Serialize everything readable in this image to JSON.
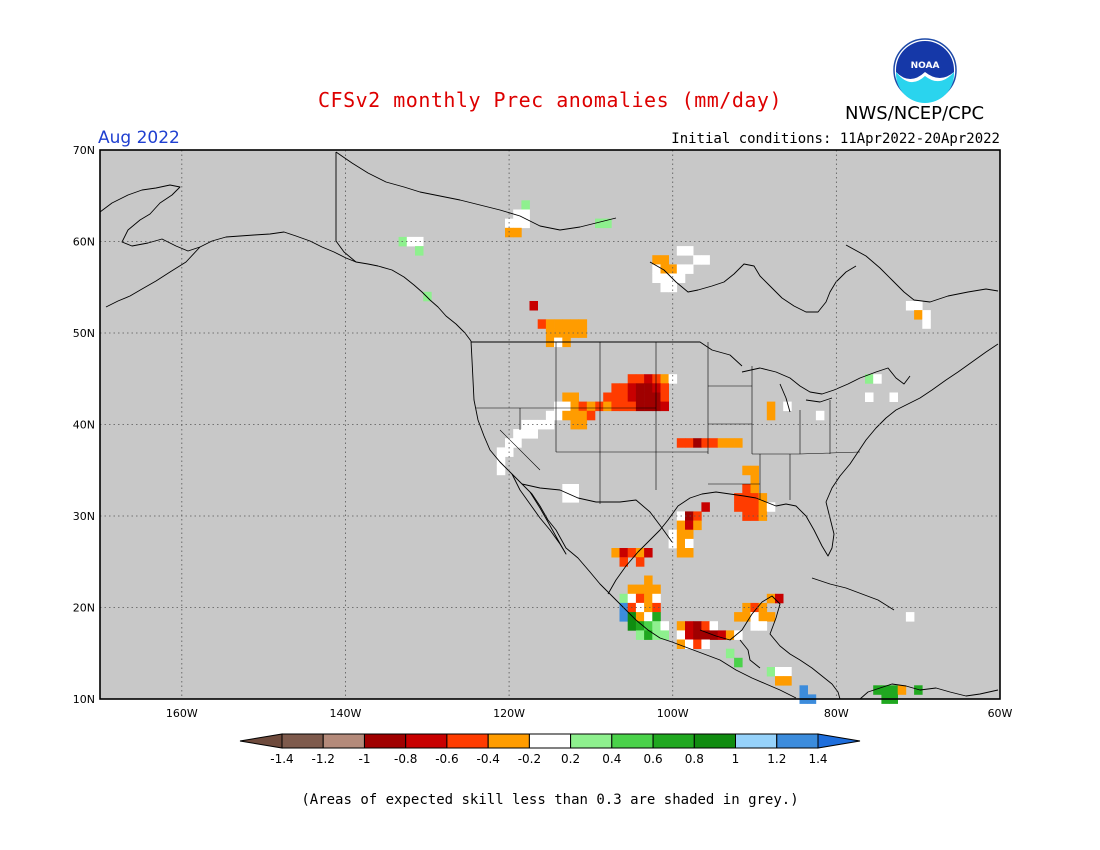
{
  "header": {
    "title": "CFSv2 monthly Prec anomalies (mm/day)",
    "agency": "NWS/NCEP/CPC",
    "logo_text": "NOAA",
    "period": "Aug 2022",
    "initial_conditions": "Initial conditions: 11Apr2022-20Apr2022"
  },
  "footnote": "(Areas of expected skill less than 0.3 are shaded in grey.)",
  "colors": {
    "land_grey": "#c8c8c8",
    "title_red": "#dd0000",
    "period_blue": "#1f3fd0"
  },
  "chart_data": {
    "type": "heatmap",
    "title": "CFSv2 monthly Prec anomalies (mm/day)",
    "projection": "lat-lon",
    "lon_range": [
      -170,
      -60
    ],
    "lat_range": [
      10,
      70
    ],
    "grid_lines": "dotted",
    "x_ticks": [
      "160W",
      "140W",
      "120W",
      "100W",
      "80W",
      "60W"
    ],
    "y_ticks": [
      "70N",
      "60N",
      "50N",
      "40N",
      "30N",
      "20N",
      "10N"
    ],
    "colorbar": {
      "labels": [
        "-1.4",
        "-1.2",
        "-1",
        "-0.8",
        "-0.6",
        "-0.4",
        "-0.2",
        "0.2",
        "0.4",
        "0.6",
        "0.8",
        "1",
        "1.2",
        "1.4"
      ],
      "colors": [
        "#6e4a3c",
        "#7e5a4c",
        "#b48a7a",
        "#a00000",
        "#c80000",
        "#ff3c00",
        "#ff9c00",
        "#ffffff",
        "#8ef08e",
        "#4ad24a",
        "#20a820",
        "#108c10",
        "#96d2fa",
        "#3c8cdc",
        "#1e6edc"
      ]
    },
    "cells": [
      {
        "lon": -118,
        "lat": 64,
        "v": 0.35
      },
      {
        "lon": -119,
        "lat": 63,
        "v": 0
      },
      {
        "lon": -118,
        "lat": 63,
        "v": 0
      },
      {
        "lon": -120,
        "lat": 62,
        "v": 0
      },
      {
        "lon": -119,
        "lat": 62,
        "v": 0
      },
      {
        "lon": -118,
        "lat": 62,
        "v": 0
      },
      {
        "lon": -120,
        "lat": 61,
        "v": -0.3
      },
      {
        "lon": -119,
        "lat": 61,
        "v": -0.3
      },
      {
        "lon": -109,
        "lat": 62,
        "v": 0.35
      },
      {
        "lon": -108,
        "lat": 62,
        "v": 0.35
      },
      {
        "lon": -133,
        "lat": 60,
        "v": 0.35
      },
      {
        "lon": -132,
        "lat": 60,
        "v": 0
      },
      {
        "lon": -131,
        "lat": 60,
        "v": 0
      },
      {
        "lon": -131,
        "lat": 59,
        "v": 0.35
      },
      {
        "lon": -130,
        "lat": 54,
        "v": 0.35
      },
      {
        "lon": -117,
        "lat": 53,
        "v": -0.7
      },
      {
        "lon": -102,
        "lat": 58,
        "v": -0.3
      },
      {
        "lon": -101,
        "lat": 58,
        "v": -0.3
      },
      {
        "lon": -99,
        "lat": 59,
        "v": 0
      },
      {
        "lon": -98,
        "lat": 59,
        "v": 0
      },
      {
        "lon": -97,
        "lat": 58,
        "v": 0
      },
      {
        "lon": -96,
        "lat": 58,
        "v": 0
      },
      {
        "lon": -102,
        "lat": 57,
        "v": 0
      },
      {
        "lon": -101,
        "lat": 57,
        "v": -0.3
      },
      {
        "lon": -100,
        "lat": 57,
        "v": -0.3
      },
      {
        "lon": -99,
        "lat": 57,
        "v": 0
      },
      {
        "lon": -98,
        "lat": 57,
        "v": 0
      },
      {
        "lon": -102,
        "lat": 56,
        "v": 0
      },
      {
        "lon": -101,
        "lat": 56,
        "v": 0
      },
      {
        "lon": -100,
        "lat": 56,
        "v": 0
      },
      {
        "lon": -99,
        "lat": 56,
        "v": 0
      },
      {
        "lon": -101,
        "lat": 55,
        "v": 0
      },
      {
        "lon": -100,
        "lat": 55,
        "v": 0
      },
      {
        "lon": -71,
        "lat": 53,
        "v": 0
      },
      {
        "lon": -70,
        "lat": 53,
        "v": 0
      },
      {
        "lon": -70,
        "lat": 52,
        "v": -0.3
      },
      {
        "lon": -69,
        "lat": 52,
        "v": 0
      },
      {
        "lon": -69,
        "lat": 51,
        "v": 0
      },
      {
        "lon": -116,
        "lat": 51,
        "v": -0.5
      },
      {
        "lon": -115,
        "lat": 51,
        "v": -0.3
      },
      {
        "lon": -114,
        "lat": 51,
        "v": -0.3
      },
      {
        "lon": -113,
        "lat": 51,
        "v": -0.3
      },
      {
        "lon": -112,
        "lat": 51,
        "v": -0.3
      },
      {
        "lon": -111,
        "lat": 51,
        "v": -0.3
      },
      {
        "lon": -115,
        "lat": 50,
        "v": -0.3
      },
      {
        "lon": -114,
        "lat": 50,
        "v": -0.3
      },
      {
        "lon": -113,
        "lat": 50,
        "v": -0.3
      },
      {
        "lon": -112,
        "lat": 50,
        "v": -0.3
      },
      {
        "lon": -111,
        "lat": 50,
        "v": -0.3
      },
      {
        "lon": -115,
        "lat": 49,
        "v": -0.3
      },
      {
        "lon": -114,
        "lat": 49,
        "v": 0
      },
      {
        "lon": -113,
        "lat": 49,
        "v": -0.3
      },
      {
        "lon": -105,
        "lat": 45,
        "v": -0.5
      },
      {
        "lon": -104,
        "lat": 45,
        "v": -0.5
      },
      {
        "lon": -103,
        "lat": 45,
        "v": -0.7
      },
      {
        "lon": -102,
        "lat": 45,
        "v": -0.5
      },
      {
        "lon": -101,
        "lat": 45,
        "v": -0.3
      },
      {
        "lon": -100,
        "lat": 45,
        "v": 0
      },
      {
        "lon": -107,
        "lat": 44,
        "v": -0.5
      },
      {
        "lon": -106,
        "lat": 44,
        "v": -0.5
      },
      {
        "lon": -105,
        "lat": 44,
        "v": -0.7
      },
      {
        "lon": -104,
        "lat": 44,
        "v": -0.9
      },
      {
        "lon": -103,
        "lat": 44,
        "v": -0.9
      },
      {
        "lon": -102,
        "lat": 44,
        "v": -0.7
      },
      {
        "lon": -101,
        "lat": 44,
        "v": -0.5
      },
      {
        "lon": -108,
        "lat": 43,
        "v": -0.5
      },
      {
        "lon": -107,
        "lat": 43,
        "v": -0.5
      },
      {
        "lon": -106,
        "lat": 43,
        "v": -0.5
      },
      {
        "lon": -105,
        "lat": 43,
        "v": -0.7
      },
      {
        "lon": -104,
        "lat": 43,
        "v": -0.9
      },
      {
        "lon": -103,
        "lat": 43,
        "v": -0.9
      },
      {
        "lon": -102,
        "lat": 43,
        "v": -0.9
      },
      {
        "lon": -101,
        "lat": 43,
        "v": -0.5
      },
      {
        "lon": -109,
        "lat": 42,
        "v": -0.5
      },
      {
        "lon": -108,
        "lat": 42,
        "v": -0.3
      },
      {
        "lon": -107,
        "lat": 42,
        "v": -0.5
      },
      {
        "lon": -106,
        "lat": 42,
        "v": -0.5
      },
      {
        "lon": -105,
        "lat": 42,
        "v": -0.5
      },
      {
        "lon": -104,
        "lat": 42,
        "v": -0.9
      },
      {
        "lon": -103,
        "lat": 42,
        "v": -0.9
      },
      {
        "lon": -102,
        "lat": 42,
        "v": -0.9
      },
      {
        "lon": -101,
        "lat": 42,
        "v": -0.7
      },
      {
        "lon": -113,
        "lat": 43,
        "v": -0.3
      },
      {
        "lon": -112,
        "lat": 43,
        "v": -0.3
      },
      {
        "lon": -114,
        "lat": 42,
        "v": 0
      },
      {
        "lon": -113,
        "lat": 42,
        "v": 0
      },
      {
        "lon": -112,
        "lat": 42,
        "v": -0.3
      },
      {
        "lon": -111,
        "lat": 42,
        "v": -0.5
      },
      {
        "lon": -110,
        "lat": 42,
        "v": -0.3
      },
      {
        "lon": -115,
        "lat": 41,
        "v": 0
      },
      {
        "lon": -114,
        "lat": 41,
        "v": 0
      },
      {
        "lon": -113,
        "lat": 41,
        "v": -0.3
      },
      {
        "lon": -112,
        "lat": 41,
        "v": -0.3
      },
      {
        "lon": -111,
        "lat": 41,
        "v": -0.3
      },
      {
        "lon": -110,
        "lat": 41,
        "v": -0.5
      },
      {
        "lon": -112,
        "lat": 40,
        "v": -0.3
      },
      {
        "lon": -111,
        "lat": 40,
        "v": -0.3
      },
      {
        "lon": -118,
        "lat": 40,
        "v": 0
      },
      {
        "lon": -117,
        "lat": 40,
        "v": 0
      },
      {
        "lon": -116,
        "lat": 40,
        "v": 0
      },
      {
        "lon": -115,
        "lat": 40,
        "v": 0
      },
      {
        "lon": -119,
        "lat": 39,
        "v": 0
      },
      {
        "lon": -118,
        "lat": 39,
        "v": 0
      },
      {
        "lon": -117,
        "lat": 39,
        "v": 0
      },
      {
        "lon": -120,
        "lat": 38,
        "v": 0
      },
      {
        "lon": -119,
        "lat": 38,
        "v": 0
      },
      {
        "lon": -121,
        "lat": 37,
        "v": 0
      },
      {
        "lon": -120,
        "lat": 37,
        "v": 0
      },
      {
        "lon": -121,
        "lat": 36,
        "v": 0
      },
      {
        "lon": -121,
        "lat": 35,
        "v": 0
      },
      {
        "lon": -113,
        "lat": 33,
        "v": 0
      },
      {
        "lon": -112,
        "lat": 33,
        "v": 0
      },
      {
        "lon": -113,
        "lat": 32,
        "v": 0
      },
      {
        "lon": -112,
        "lat": 32,
        "v": 0
      },
      {
        "lon": -99,
        "lat": 38,
        "v": -0.5
      },
      {
        "lon": -98,
        "lat": 38,
        "v": -0.5
      },
      {
        "lon": -97,
        "lat": 38,
        "v": -0.9
      },
      {
        "lon": -96,
        "lat": 38,
        "v": -0.5
      },
      {
        "lon": -95,
        "lat": 38,
        "v": -0.5
      },
      {
        "lon": -94,
        "lat": 38,
        "v": -0.3
      },
      {
        "lon": -93,
        "lat": 38,
        "v": -0.3
      },
      {
        "lon": -92,
        "lat": 38,
        "v": -0.3
      },
      {
        "lon": -88,
        "lat": 42,
        "v": -0.3
      },
      {
        "lon": -88,
        "lat": 41,
        "v": -0.3
      },
      {
        "lon": -86,
        "lat": 42,
        "v": 0
      },
      {
        "lon": -82,
        "lat": 41,
        "v": 0
      },
      {
        "lon": -76,
        "lat": 43,
        "v": 0
      },
      {
        "lon": -76,
        "lat": 45,
        "v": 0.35
      },
      {
        "lon": -75,
        "lat": 45,
        "v": 0
      },
      {
        "lon": -73,
        "lat": 43,
        "v": 0
      },
      {
        "lon": -91,
        "lat": 35,
        "v": -0.3
      },
      {
        "lon": -90,
        "lat": 35,
        "v": -0.3
      },
      {
        "lon": -90,
        "lat": 34,
        "v": -0.3
      },
      {
        "lon": -91,
        "lat": 33,
        "v": -0.5
      },
      {
        "lon": -90,
        "lat": 33,
        "v": -0.3
      },
      {
        "lon": -92,
        "lat": 32,
        "v": -0.5
      },
      {
        "lon": -91,
        "lat": 32,
        "v": -0.5
      },
      {
        "lon": -90,
        "lat": 32,
        "v": -0.5
      },
      {
        "lon": -89,
        "lat": 32,
        "v": -0.3
      },
      {
        "lon": -92,
        "lat": 31,
        "v": -0.5
      },
      {
        "lon": -91,
        "lat": 31,
        "v": -0.5
      },
      {
        "lon": -90,
        "lat": 31,
        "v": -0.5
      },
      {
        "lon": -89,
        "lat": 31,
        "v": -0.3
      },
      {
        "lon": -88,
        "lat": 31,
        "v": 0
      },
      {
        "lon": -91,
        "lat": 30,
        "v": -0.5
      },
      {
        "lon": -90,
        "lat": 30,
        "v": -0.5
      },
      {
        "lon": -89,
        "lat": 30,
        "v": -0.3
      },
      {
        "lon": -96,
        "lat": 31,
        "v": -0.7
      },
      {
        "lon": -99,
        "lat": 30,
        "v": 0
      },
      {
        "lon": -98,
        "lat": 30,
        "v": -0.9
      },
      {
        "lon": -97,
        "lat": 30,
        "v": -0.5
      },
      {
        "lon": -99,
        "lat": 29,
        "v": -0.3
      },
      {
        "lon": -98,
        "lat": 29,
        "v": -0.7
      },
      {
        "lon": -97,
        "lat": 29,
        "v": -0.3
      },
      {
        "lon": -100,
        "lat": 28,
        "v": 0
      },
      {
        "lon": -99,
        "lat": 28,
        "v": -0.3
      },
      {
        "lon": -98,
        "lat": 28,
        "v": -0.3
      },
      {
        "lon": -100,
        "lat": 27,
        "v": 0
      },
      {
        "lon": -99,
        "lat": 27,
        "v": -0.3
      },
      {
        "lon": -98,
        "lat": 27,
        "v": 0
      },
      {
        "lon": -99,
        "lat": 26,
        "v": -0.3
      },
      {
        "lon": -98,
        "lat": 26,
        "v": -0.3
      },
      {
        "lon": -107,
        "lat": 26,
        "v": -0.3
      },
      {
        "lon": -106,
        "lat": 26,
        "v": -0.7
      },
      {
        "lon": -105,
        "lat": 26,
        "v": -0.5
      },
      {
        "lon": -104,
        "lat": 26,
        "v": -0.3
      },
      {
        "lon": -103,
        "lat": 26,
        "v": -0.7
      },
      {
        "lon": -106,
        "lat": 25,
        "v": -0.5
      },
      {
        "lon": -104,
        "lat": 25,
        "v": -0.5
      },
      {
        "lon": -103,
        "lat": 23,
        "v": -0.3
      },
      {
        "lon": -105,
        "lat": 22,
        "v": -0.3
      },
      {
        "lon": -104,
        "lat": 22,
        "v": -0.3
      },
      {
        "lon": -103,
        "lat": 22,
        "v": -0.3
      },
      {
        "lon": -102,
        "lat": 22,
        "v": -0.3
      },
      {
        "lon": -106,
        "lat": 21,
        "v": 0.35
      },
      {
        "lon": -105,
        "lat": 21,
        "v": 0
      },
      {
        "lon": -104,
        "lat": 21,
        "v": -0.5
      },
      {
        "lon": -103,
        "lat": 21,
        "v": -0.3
      },
      {
        "lon": -102,
        "lat": 21,
        "v": 0
      },
      {
        "lon": -106,
        "lat": 20,
        "v": 1.3
      },
      {
        "lon": -105,
        "lat": 20,
        "v": -0.5
      },
      {
        "lon": -104,
        "lat": 20,
        "v": 0
      },
      {
        "lon": -103,
        "lat": 20,
        "v": -0.3
      },
      {
        "lon": -102,
        "lat": 20,
        "v": -0.5
      },
      {
        "lon": -106,
        "lat": 19,
        "v": 1.3
      },
      {
        "lon": -105,
        "lat": 19,
        "v": 0.9
      },
      {
        "lon": -104,
        "lat": 19,
        "v": -0.3
      },
      {
        "lon": -103,
        "lat": 19,
        "v": 0
      },
      {
        "lon": -102,
        "lat": 19,
        "v": 0.7
      },
      {
        "lon": -105,
        "lat": 18,
        "v": 0.9
      },
      {
        "lon": -104,
        "lat": 18,
        "v": 0.7
      },
      {
        "lon": -103,
        "lat": 18,
        "v": 0.5
      },
      {
        "lon": -102,
        "lat": 18,
        "v": 0.35
      },
      {
        "lon": -101,
        "lat": 18,
        "v": 0
      },
      {
        "lon": -104,
        "lat": 17,
        "v": 0.35
      },
      {
        "lon": -103,
        "lat": 17,
        "v": 0.7
      },
      {
        "lon": -102,
        "lat": 17,
        "v": 0.35
      },
      {
        "lon": -101,
        "lat": 17,
        "v": 0.35
      },
      {
        "lon": -99,
        "lat": 18,
        "v": -0.3
      },
      {
        "lon": -98,
        "lat": 18,
        "v": -0.7
      },
      {
        "lon": -97,
        "lat": 18,
        "v": -0.9
      },
      {
        "lon": -96,
        "lat": 18,
        "v": -0.5
      },
      {
        "lon": -95,
        "lat": 18,
        "v": 0
      },
      {
        "lon": -99,
        "lat": 17,
        "v": 0
      },
      {
        "lon": -98,
        "lat": 17,
        "v": -0.7
      },
      {
        "lon": -97,
        "lat": 17,
        "v": -0.9
      },
      {
        "lon": -96,
        "lat": 17,
        "v": -0.9
      },
      {
        "lon": -95,
        "lat": 17,
        "v": -0.9
      },
      {
        "lon": -94,
        "lat": 17,
        "v": -0.7
      },
      {
        "lon": -93,
        "lat": 17,
        "v": -0.3
      },
      {
        "lon": -92,
        "lat": 17,
        "v": 0
      },
      {
        "lon": -99,
        "lat": 16,
        "v": -0.3
      },
      {
        "lon": -98,
        "lat": 16,
        "v": 0
      },
      {
        "lon": -97,
        "lat": 16,
        "v": -0.5
      },
      {
        "lon": -96,
        "lat": 16,
        "v": 0
      },
      {
        "lon": -93,
        "lat": 15,
        "v": 0.35
      },
      {
        "lon": -92,
        "lat": 14,
        "v": 0.5
      },
      {
        "lon": -92,
        "lat": 19,
        "v": -0.3
      },
      {
        "lon": -91,
        "lat": 20,
        "v": -0.3
      },
      {
        "lon": -90,
        "lat": 20,
        "v": -0.5
      },
      {
        "lon": -89,
        "lat": 20,
        "v": -0.3
      },
      {
        "lon": -88,
        "lat": 21,
        "v": -0.3
      },
      {
        "lon": -87,
        "lat": 21,
        "v": -0.7
      },
      {
        "lon": -91,
        "lat": 19,
        "v": -0.3
      },
      {
        "lon": -90,
        "lat": 19,
        "v": 0
      },
      {
        "lon": -89,
        "lat": 19,
        "v": -0.3
      },
      {
        "lon": -88,
        "lat": 19,
        "v": -0.3
      },
      {
        "lon": -90,
        "lat": 18,
        "v": 0
      },
      {
        "lon": -89,
        "lat": 18,
        "v": 0
      },
      {
        "lon": -88,
        "lat": 13,
        "v": 0.35
      },
      {
        "lon": -87,
        "lat": 13,
        "v": 0
      },
      {
        "lon": -86,
        "lat": 13,
        "v": 0
      },
      {
        "lon": -87,
        "lat": 12,
        "v": -0.3
      },
      {
        "lon": -86,
        "lat": 12,
        "v": -0.3
      },
      {
        "lon": -84,
        "lat": 11,
        "v": 1.3
      },
      {
        "lon": -84,
        "lat": 10,
        "v": 1.3
      },
      {
        "lon": -83,
        "lat": 10,
        "v": 1.3
      },
      {
        "lon": -71,
        "lat": 19,
        "v": 0
      },
      {
        "lon": -75,
        "lat": 11,
        "v": 0.7
      },
      {
        "lon": -74,
        "lat": 11,
        "v": 0.7
      },
      {
        "lon": -73,
        "lat": 11,
        "v": 0.7
      },
      {
        "lon": -72,
        "lat": 11,
        "v": -0.3
      },
      {
        "lon": -70,
        "lat": 11,
        "v": 0.7
      },
      {
        "lon": -74,
        "lat": 10,
        "v": 0.7
      },
      {
        "lon": -73,
        "lat": 10,
        "v": 0.7
      }
    ]
  }
}
